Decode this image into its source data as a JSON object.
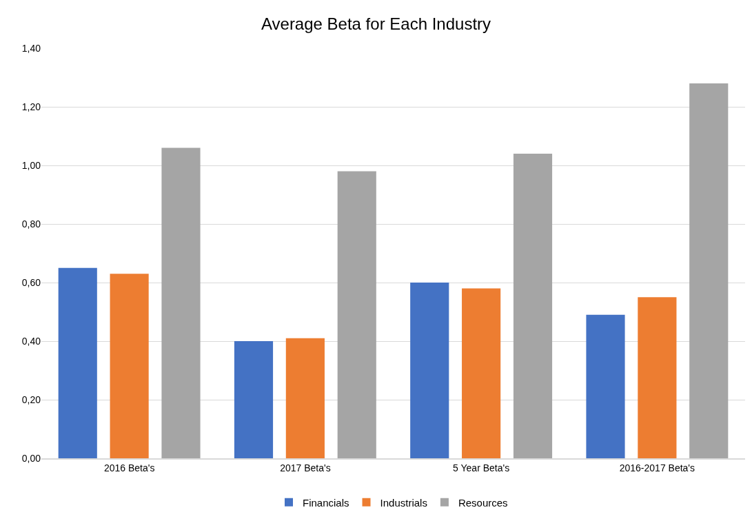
{
  "chart_data": {
    "type": "bar",
    "title": "Average Beta for Each Industry",
    "categories": [
      "2016 Beta's",
      "2017 Beta's",
      "5 Year Beta's",
      "2016-2017 Beta's"
    ],
    "series": [
      {
        "name": "Financials",
        "color": "#4472c4",
        "values": [
          0.65,
          0.4,
          0.6,
          0.49
        ]
      },
      {
        "name": "Industrials",
        "color": "#ed7d31",
        "values": [
          0.63,
          0.41,
          0.58,
          0.55
        ]
      },
      {
        "name": "Resources",
        "color": "#a5a5a5",
        "values": [
          1.06,
          0.98,
          1.04,
          1.28
        ]
      }
    ],
    "ylim": [
      0,
      1.4
    ],
    "yticks": [
      {
        "value": 0,
        "label": "0,00"
      },
      {
        "value": 0.2,
        "label": "0,20"
      },
      {
        "value": 0.4,
        "label": "0,40"
      },
      {
        "value": 0.6,
        "label": "0,60"
      },
      {
        "value": 0.8,
        "label": "0,80"
      },
      {
        "value": 1.0,
        "label": "1,00"
      },
      {
        "value": 1.2,
        "label": "1,20"
      },
      {
        "value": 1.4,
        "label": "1,40"
      }
    ],
    "grid": "y",
    "legend": "bottom"
  }
}
